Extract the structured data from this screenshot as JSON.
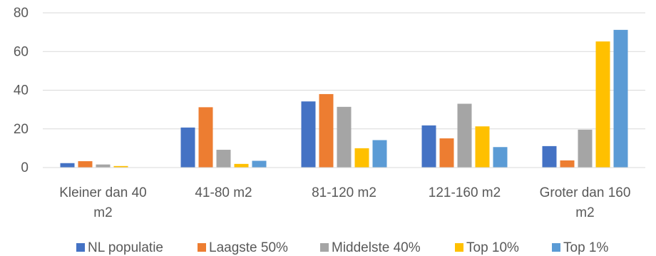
{
  "chart_data": {
    "type": "bar",
    "title": "",
    "xlabel": "",
    "ylabel": "",
    "ylim": [
      0,
      80
    ],
    "yticks": [
      0,
      20,
      40,
      60,
      80
    ],
    "grid": true,
    "legend_position": "bottom",
    "categories": [
      [
        "Kleiner dan 40",
        "m2"
      ],
      [
        "41-80 m2"
      ],
      [
        "81-120 m2"
      ],
      [
        "121-160 m2"
      ],
      [
        "Groter dan 160",
        "m2"
      ]
    ],
    "series": [
      {
        "name": "NL populatie",
        "color": "#4472C4",
        "values": [
          2.3,
          20.7,
          34.2,
          21.8,
          11.1
        ]
      },
      {
        "name": "Laagste 50%",
        "color": "#ED7D31",
        "values": [
          3.3,
          31.2,
          38.0,
          15.1,
          3.7
        ]
      },
      {
        "name": "Middelste 40%",
        "color": "#A5A5A5",
        "values": [
          1.6,
          9.2,
          31.4,
          33.0,
          19.6
        ]
      },
      {
        "name": "Top 10%",
        "color": "#FFC000",
        "values": [
          0.8,
          1.9,
          10.0,
          21.3,
          65.2
        ]
      },
      {
        "name": "Top 1%",
        "color": "#5B9BD5",
        "values": [
          0,
          3.5,
          14.2,
          10.6,
          71.2
        ]
      }
    ]
  }
}
